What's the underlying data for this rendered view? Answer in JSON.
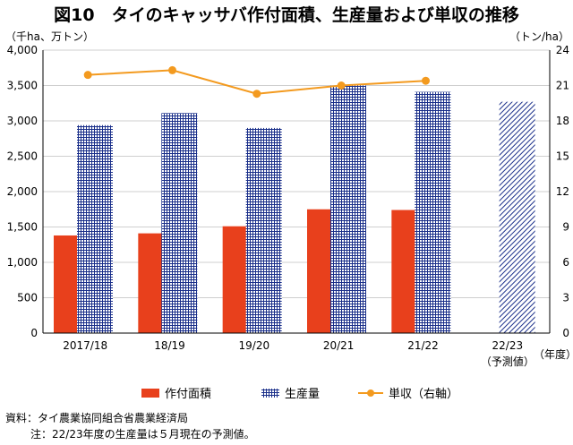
{
  "title": "図10　タイのキャッサバ作付面積、生産量および単収の推移",
  "source": "資料：タイ農業協同組合省農業経済局",
  "note": "注：22/23年度の生産量は５月現在の予測値。",
  "chart_data": {
    "type": "bar",
    "categories": [
      "2017/18",
      "18/19",
      "19/20",
      "20/21",
      "21/22",
      "22/23"
    ],
    "category_sublabels": [
      "",
      "",
      "",
      "",
      "",
      "（予測値）"
    ],
    "xlabel": "（年度）",
    "y_left": {
      "label": "（千ha、万トン）",
      "lim": [
        0,
        4000
      ],
      "ticks": [
        0,
        500,
        1000,
        1500,
        2000,
        2500,
        3000,
        3500,
        4000
      ],
      "tick_labels": [
        "0",
        "500",
        "1,000",
        "1,500",
        "2,000",
        "2,500",
        "3,000",
        "3,500",
        "4,000"
      ]
    },
    "y_right": {
      "label": "（トン/ha）",
      "lim": [
        0,
        24
      ],
      "ticks": [
        0,
        3,
        6,
        9,
        12,
        15,
        18,
        21,
        24
      ],
      "tick_labels": [
        "0",
        "3",
        "6",
        "9",
        "12",
        "15",
        "18",
        "21",
        "24"
      ]
    },
    "series": [
      {
        "name": "作付面積",
        "kind": "bar",
        "axis": "left",
        "color": "#e8401c",
        "values": [
          1380,
          1410,
          1510,
          1750,
          1740,
          null
        ]
      },
      {
        "name": "生産量",
        "kind": "bar",
        "axis": "left",
        "color": "#1a2f8a",
        "pattern": "grid",
        "values": [
          2940,
          3110,
          2900,
          3500,
          3410,
          3270
        ],
        "projected_pattern": "diagonal"
      },
      {
        "name": "単収（右軸）",
        "kind": "line",
        "axis": "right",
        "color": "#f39a1f",
        "values": [
          21.9,
          22.3,
          20.3,
          21.0,
          21.4,
          null
        ]
      }
    ],
    "grid": true,
    "legend_position": "bottom"
  }
}
